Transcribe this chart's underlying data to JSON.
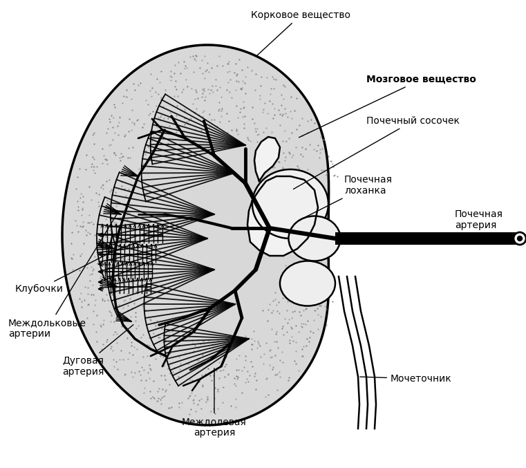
{
  "bg_color": "#ffffff",
  "labels": {
    "korkovoe": "Корковое вещество",
    "mozgovoe": "Мозговое вещество",
    "sosochek": "Почечный сосочек",
    "lohanka": "Почечная\nлоханка",
    "arteria": "Почечная\nартерия",
    "klubochki": "Клубочки",
    "mezhdolkovye": "Междольковые\nартерии",
    "dugovaya": "Дуговая\nартерия",
    "mezhdolevaya": "Междолевая\nартерия",
    "mochetochnik": "Мочеточник"
  }
}
